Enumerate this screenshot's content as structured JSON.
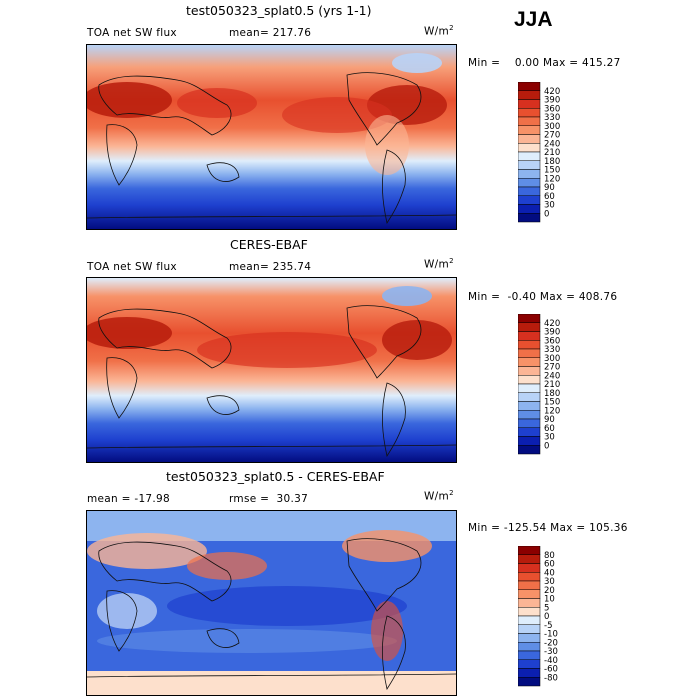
{
  "season": "JJA",
  "panels": [
    {
      "title": "test050323_splat0.5 (yrs 1-1)",
      "stat_left": "TOA net SW flux",
      "stat_mid": "mean= 217.76",
      "unit": "W/m",
      "unit_exp": "2",
      "minmax": "Min =    0.00 Max = 415.27",
      "levels": [
        "420",
        "390",
        "360",
        "330",
        "300",
        "270",
        "240",
        "210",
        "180",
        "150",
        "120",
        "90",
        "60",
        "30",
        "0"
      ],
      "colors": [
        "#8b0000",
        "#b71c0c",
        "#d7301f",
        "#e8502f",
        "#f07048",
        "#f79268",
        "#fbb595",
        "#fde0cc",
        "#dfeefc",
        "#b8d3f7",
        "#8db4ef",
        "#5f8ee6",
        "#3a67dd",
        "#1e40cf",
        "#0b1fb0",
        "#020c80"
      ]
    },
    {
      "title": "CERES-EBAF",
      "stat_left": "TOA net SW flux",
      "stat_mid": "mean= 235.74",
      "unit": "W/m",
      "unit_exp": "2",
      "minmax": "Min =  -0.40 Max = 408.76",
      "levels": [
        "420",
        "390",
        "360",
        "330",
        "300",
        "270",
        "240",
        "210",
        "180",
        "150",
        "120",
        "90",
        "60",
        "30",
        "0"
      ],
      "colors": [
        "#8b0000",
        "#b71c0c",
        "#d7301f",
        "#e8502f",
        "#f07048",
        "#f79268",
        "#fbb595",
        "#fde0cc",
        "#dfeefc",
        "#b8d3f7",
        "#8db4ef",
        "#5f8ee6",
        "#3a67dd",
        "#1e40cf",
        "#0b1fb0",
        "#020c80"
      ]
    },
    {
      "title": "test050323_splat0.5 - CERES-EBAF",
      "stat_left": "mean = -17.98",
      "stat_mid": "rmse =  30.37",
      "unit": "W/m",
      "unit_exp": "2",
      "minmax": "Min = -125.54 Max = 105.36",
      "levels": [
        "80",
        "60",
        "40",
        "30",
        "20",
        "10",
        "5",
        "0",
        "-5",
        "-10",
        "-20",
        "-30",
        "-40",
        "-60",
        "-80"
      ],
      "colors": [
        "#8b0000",
        "#b71c0c",
        "#d7301f",
        "#e8502f",
        "#f07048",
        "#f79268",
        "#fbb595",
        "#fde0cc",
        "#dfeefc",
        "#b8d3f7",
        "#8db4ef",
        "#5f8ee6",
        "#3a67dd",
        "#1e40cf",
        "#0b1fb0",
        "#020c80"
      ]
    }
  ]
}
